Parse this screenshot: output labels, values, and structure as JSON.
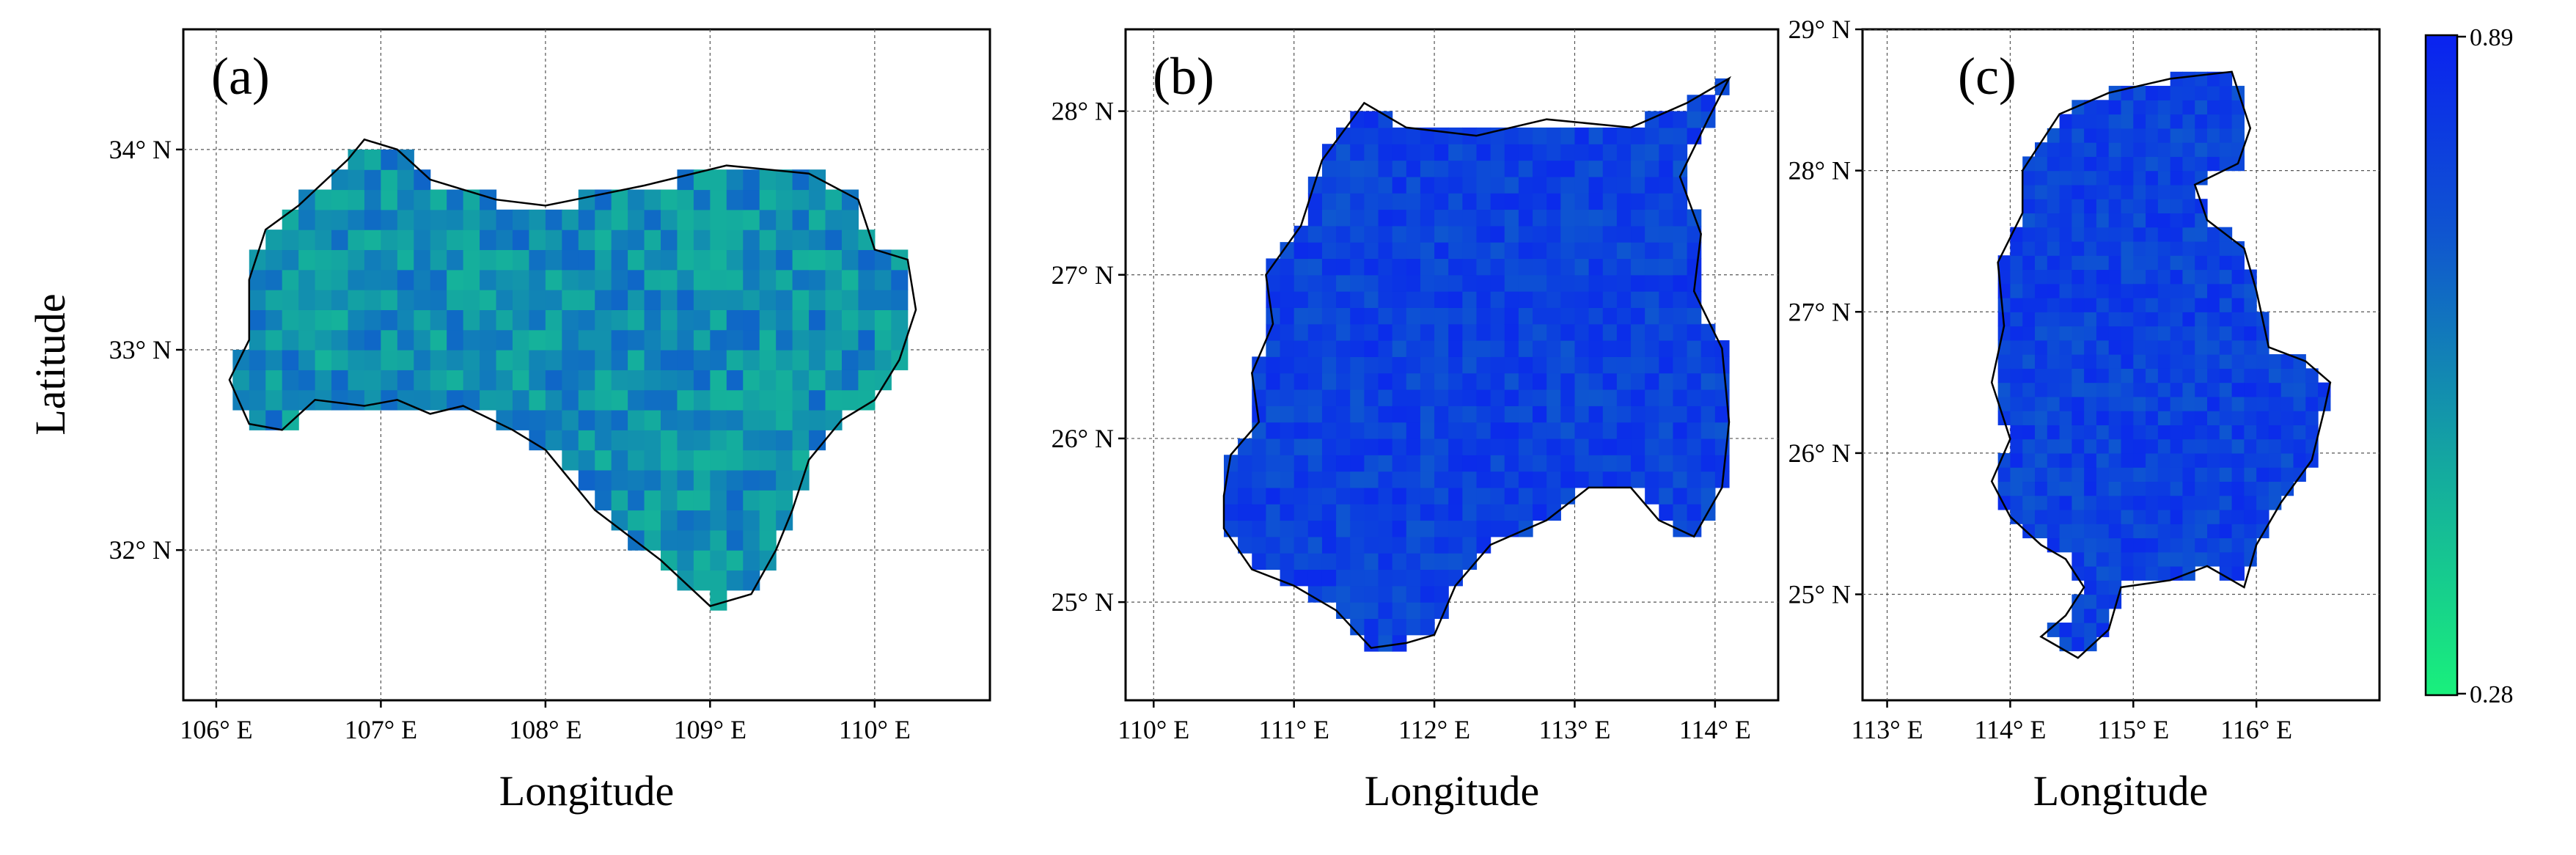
{
  "chart_data": {
    "type": "heatmap",
    "colorbar": {
      "min": 0.28,
      "max": 0.89,
      "min_label": "0.28",
      "max_label": "0.89",
      "low_color": "#19f07c",
      "high_color": "#0a22f0"
    },
    "panels": [
      {
        "id": "a",
        "label": "(a)",
        "xlabel": "Longitude",
        "ylabel": "Latitude",
        "xlim": [
          105.8,
          110.7
        ],
        "ylim": [
          31.25,
          34.6
        ],
        "xticks": [
          106,
          107,
          108,
          109,
          110
        ],
        "xtick_labels": [
          "106° E",
          "107° E",
          "108° E",
          "109° E",
          "110° E"
        ],
        "yticks": [
          32,
          33,
          34
        ],
        "ytick_labels": [
          "32° N",
          "33° N",
          "34° N"
        ],
        "grid": true,
        "cell_size": 0.1,
        "mean_value": 0.64,
        "value_spread": 0.1,
        "boundary": [
          [
            106.08,
            32.85
          ],
          [
            106.2,
            32.63
          ],
          [
            106.4,
            32.6
          ],
          [
            106.6,
            32.75
          ],
          [
            106.9,
            32.72
          ],
          [
            107.1,
            32.75
          ],
          [
            107.3,
            32.68
          ],
          [
            107.5,
            32.72
          ],
          [
            107.8,
            32.6
          ],
          [
            108.0,
            32.5
          ],
          [
            108.3,
            32.2
          ],
          [
            108.7,
            31.95
          ],
          [
            109.0,
            31.72
          ],
          [
            109.25,
            31.78
          ],
          [
            109.4,
            32.0
          ],
          [
            109.5,
            32.2
          ],
          [
            109.6,
            32.45
          ],
          [
            109.8,
            32.65
          ],
          [
            110.0,
            32.75
          ],
          [
            110.15,
            32.95
          ],
          [
            110.25,
            33.2
          ],
          [
            110.2,
            33.45
          ],
          [
            110.0,
            33.5
          ],
          [
            109.9,
            33.75
          ],
          [
            109.6,
            33.88
          ],
          [
            109.1,
            33.92
          ],
          [
            108.6,
            33.82
          ],
          [
            108.0,
            33.72
          ],
          [
            107.7,
            33.75
          ],
          [
            107.3,
            33.85
          ],
          [
            107.1,
            34.0
          ],
          [
            106.9,
            34.05
          ],
          [
            106.8,
            33.95
          ],
          [
            106.5,
            33.72
          ],
          [
            106.3,
            33.6
          ],
          [
            106.2,
            33.35
          ],
          [
            106.2,
            33.05
          ]
        ]
      },
      {
        "id": "b",
        "label": "(b)",
        "xlabel": "Longitude",
        "ylabel": "",
        "xlim": [
          109.8,
          114.45
        ],
        "ylim": [
          24.4,
          28.5
        ],
        "xticks": [
          110,
          111,
          112,
          113,
          114
        ],
        "xtick_labels": [
          "110° E",
          "111° E",
          "112° E",
          "113° E",
          "114° E"
        ],
        "yticks": [
          25,
          26,
          27,
          28
        ],
        "ytick_labels": [
          "25° N",
          "26° N",
          "27° N",
          "28° N"
        ],
        "grid": true,
        "cell_size": 0.1,
        "mean_value": 0.82,
        "value_spread": 0.05,
        "boundary": [
          [
            110.5,
            25.45
          ],
          [
            110.7,
            25.2
          ],
          [
            111.0,
            25.1
          ],
          [
            111.3,
            24.95
          ],
          [
            111.55,
            24.72
          ],
          [
            111.8,
            24.75
          ],
          [
            112.0,
            24.8
          ],
          [
            112.15,
            25.1
          ],
          [
            112.4,
            25.35
          ],
          [
            112.8,
            25.5
          ],
          [
            113.1,
            25.7
          ],
          [
            113.4,
            25.7
          ],
          [
            113.6,
            25.5
          ],
          [
            113.85,
            25.4
          ],
          [
            114.05,
            25.7
          ],
          [
            114.1,
            26.1
          ],
          [
            114.05,
            26.55
          ],
          [
            113.85,
            26.9
          ],
          [
            113.9,
            27.25
          ],
          [
            113.75,
            27.6
          ],
          [
            113.95,
            27.95
          ],
          [
            114.1,
            28.2
          ],
          [
            113.8,
            28.05
          ],
          [
            113.4,
            27.9
          ],
          [
            112.8,
            27.95
          ],
          [
            112.3,
            27.85
          ],
          [
            111.8,
            27.9
          ],
          [
            111.5,
            28.05
          ],
          [
            111.2,
            27.7
          ],
          [
            111.05,
            27.3
          ],
          [
            110.8,
            27.0
          ],
          [
            110.85,
            26.7
          ],
          [
            110.7,
            26.4
          ],
          [
            110.75,
            26.1
          ],
          [
            110.55,
            25.9
          ],
          [
            110.5,
            25.65
          ]
        ]
      },
      {
        "id": "c",
        "label": "(c)",
        "xlabel": "Longitude",
        "ylabel": "",
        "xlim": [
          112.8,
          117.0
        ],
        "ylim": [
          24.25,
          29.0
        ],
        "xticks": [
          113,
          114,
          115,
          116
        ],
        "xtick_labels": [
          "113° E",
          "114° E",
          "115° E",
          "116° E"
        ],
        "yticks": [
          25,
          26,
          27,
          28,
          29
        ],
        "ytick_labels": [
          "25° N",
          "26° N",
          "27° N",
          "28° N",
          "29° N"
        ],
        "grid": true,
        "cell_size": 0.1,
        "mean_value": 0.82,
        "value_spread": 0.05,
        "boundary": [
          [
            114.0,
            25.55
          ],
          [
            114.25,
            25.35
          ],
          [
            114.45,
            25.25
          ],
          [
            114.6,
            25.05
          ],
          [
            114.45,
            24.85
          ],
          [
            114.25,
            24.7
          ],
          [
            114.55,
            24.55
          ],
          [
            114.8,
            24.75
          ],
          [
            114.9,
            25.05
          ],
          [
            115.3,
            25.1
          ],
          [
            115.6,
            25.2
          ],
          [
            115.9,
            25.05
          ],
          [
            116.0,
            25.35
          ],
          [
            116.2,
            25.65
          ],
          [
            116.45,
            25.95
          ],
          [
            116.55,
            26.3
          ],
          [
            116.6,
            26.5
          ],
          [
            116.4,
            26.65
          ],
          [
            116.1,
            26.75
          ],
          [
            116.0,
            27.15
          ],
          [
            115.9,
            27.45
          ],
          [
            115.6,
            27.65
          ],
          [
            115.5,
            27.9
          ],
          [
            115.85,
            28.05
          ],
          [
            115.95,
            28.3
          ],
          [
            115.8,
            28.7
          ],
          [
            115.3,
            28.65
          ],
          [
            114.8,
            28.55
          ],
          [
            114.4,
            28.4
          ],
          [
            114.1,
            28.0
          ],
          [
            114.1,
            27.7
          ],
          [
            113.9,
            27.35
          ],
          [
            113.95,
            26.9
          ],
          [
            113.85,
            26.5
          ],
          [
            114.0,
            26.1
          ],
          [
            113.85,
            25.8
          ]
        ]
      }
    ]
  }
}
